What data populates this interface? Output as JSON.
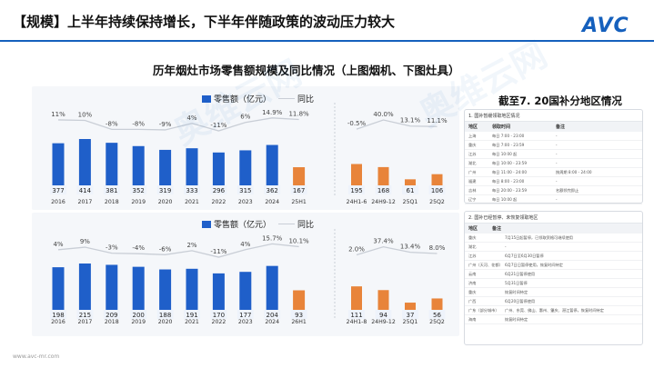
{
  "header": {
    "title": "【规模】上半年持续保持增长，下半年伴随政策的波动压力较大",
    "logo": "AVC"
  },
  "subtitle": "历年烟灶市场零售额规模及同比情况（上图烟机、下图灶具）",
  "legend": {
    "bar": "零售额（亿元）",
    "line": "同比"
  },
  "right": {
    "title": "截至7. 20国补分地区情况",
    "box1": {
      "header": "1. 国补暂缓领取地区情况",
      "cols": [
        "地区",
        "领取时间",
        "备注"
      ],
      "rows": [
        [
          "上海",
          "每日 7:00 - 23:00",
          "-"
        ],
        [
          "重庆",
          "每日 7:00 - 23:59",
          "-"
        ],
        [
          "江苏",
          "每日 10:00 起",
          "-"
        ],
        [
          "湖北",
          "每日 10:00 - 23:59",
          "-"
        ],
        [
          "广州",
          "每日 11:00 - 24:00",
          "按周期 8:00 - 24:00"
        ],
        [
          "福建",
          "每日 8:00 - 23:00",
          "-"
        ],
        [
          "吉林",
          "每日 20:00 - 23:59",
          "名额领完即止"
        ],
        [
          "辽宁",
          "每日 10:00 起",
          "-"
        ]
      ]
    },
    "box2": {
      "header": "2. 国补已经暂停、未恢复领取地区",
      "cols": [
        "地区",
        "备注"
      ],
      "rows": [
        [
          "重庆",
          "7月15日起暂停，已领取资格可继续使用"
        ],
        [
          "湖北",
          "-"
        ],
        [
          "江苏",
          "6月7日至6月30日暂停"
        ],
        [
          "广州（天河、花都）",
          "6月7日日暂停使用，恢复时间待定"
        ],
        [
          "云南",
          "6月21日暂停使用"
        ],
        [
          "济南",
          "5月31日暂停"
        ],
        [
          "重庆",
          "恢复时间待定"
        ],
        [
          "广西",
          "6月20日暂停使用"
        ],
        [
          "广东（部分城市）",
          "广州、东莞、佛山、惠州、肇庆、湛江暂停，恢复时间待定"
        ],
        [
          "海南",
          "恢复时间待定"
        ]
      ]
    }
  },
  "footer": "www.avc-mr.com",
  "watermark": "奥维云网",
  "colors": {
    "bar": "#1f5fc9",
    "bar_partial": "#e8843a",
    "line": "#c9ced6",
    "label_box": "#eef3fb"
  },
  "chart_data": [
    {
      "type": "bar",
      "name": "烟机",
      "categories": [
        "2016",
        "2017",
        "2018",
        "2019",
        "2020",
        "2021",
        "2022",
        "2023",
        "2024",
        "25H1"
      ],
      "values": [
        377,
        414,
        381,
        352,
        319,
        333,
        296,
        315,
        362,
        167
      ],
      "yoy": [
        "11%",
        "10%",
        "-8%",
        "-8%",
        "-9%",
        "4%",
        "-11%",
        "6%",
        "14.9%",
        "11.8%"
      ],
      "yoy_values": [
        11,
        10,
        -8,
        -8,
        -9,
        4,
        -11,
        6,
        14.9,
        11.8
      ],
      "extra_categories": [
        "24H1-6",
        "24H9-12",
        "25Q1",
        "25Q2"
      ],
      "extra_values": [
        195,
        168,
        61,
        106
      ],
      "extra_yoy": [
        "-0.5%",
        "40.0%",
        "13.1%",
        "11.1%"
      ],
      "extra_yoy_values": [
        -0.5,
        40.0,
        13.1,
        11.1
      ]
    },
    {
      "type": "bar",
      "name": "灶具",
      "categories": [
        "2016",
        "2017",
        "2018",
        "2019",
        "2020",
        "2021",
        "2022",
        "2023",
        "2024",
        "26H1"
      ],
      "values": [
        198,
        215,
        209,
        200,
        188,
        191,
        170,
        177,
        204,
        93
      ],
      "yoy": [
        "4%",
        "9%",
        "-3%",
        "-4%",
        "-6%",
        "2%",
        "-11%",
        "4%",
        "15.7%",
        "10.1%"
      ],
      "yoy_values": [
        4,
        9,
        -3,
        -4,
        -6,
        2,
        -11,
        4,
        15.7,
        10.1
      ],
      "extra_categories": [
        "24H1-8",
        "24H9-12",
        "25Q1",
        "25Q2"
      ],
      "extra_values": [
        111,
        94,
        37,
        56
      ],
      "extra_yoy": [
        "2.0%",
        "37.4%",
        "13.4%",
        "8.0%"
      ],
      "extra_yoy_values": [
        2.0,
        37.4,
        13.4,
        8.0
      ]
    }
  ]
}
